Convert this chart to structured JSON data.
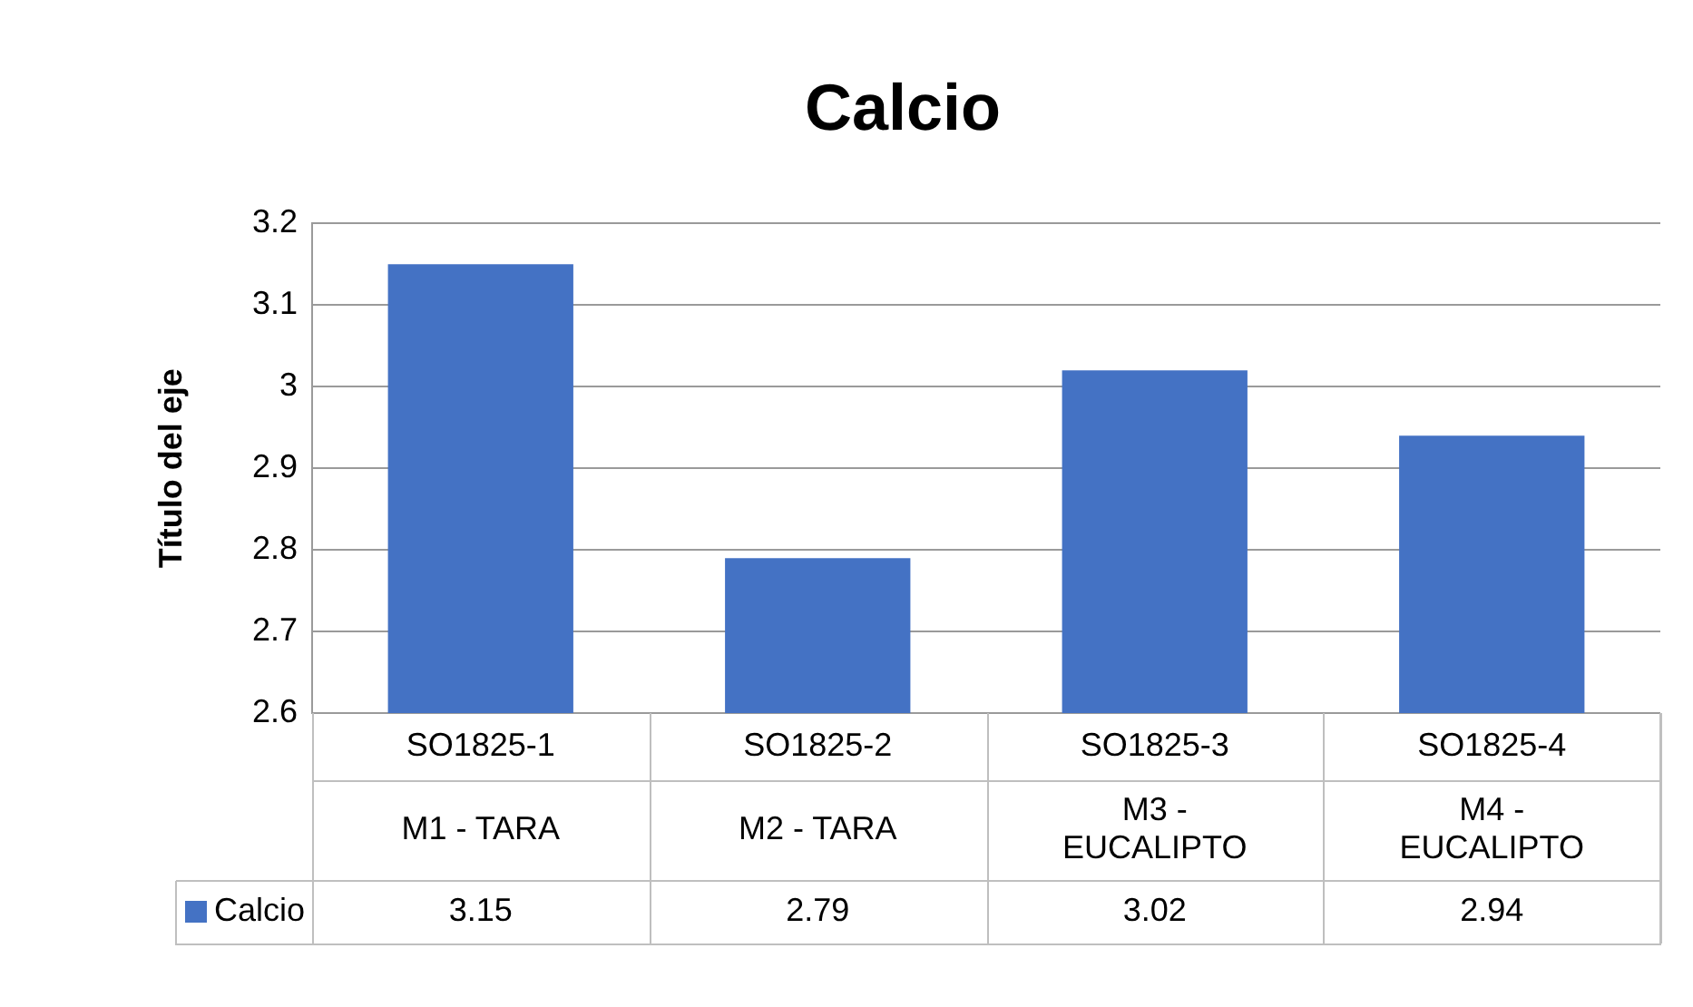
{
  "chart_data": {
    "type": "bar",
    "title": "Calcio",
    "ylabel": "Título del eje",
    "categories": [
      "SO1825-1\nM1 - TARA",
      "SO1825-2\nM2 - TARA",
      "SO1825-3\nM3 -\nEUCALIPTO",
      "SO1825-4\nM4 -\nEUCALIPTO"
    ],
    "series": [
      {
        "name": "Calcio",
        "color": "#4472c4",
        "values": [
          3.15,
          2.79,
          3.02,
          2.94
        ]
      }
    ],
    "ylim": [
      2.6,
      3.2
    ],
    "yticks": [
      2.6,
      2.7,
      2.8,
      2.9,
      3,
      3.1,
      3.2
    ],
    "grid": "y",
    "legend": "bottom",
    "data_labels": true
  }
}
